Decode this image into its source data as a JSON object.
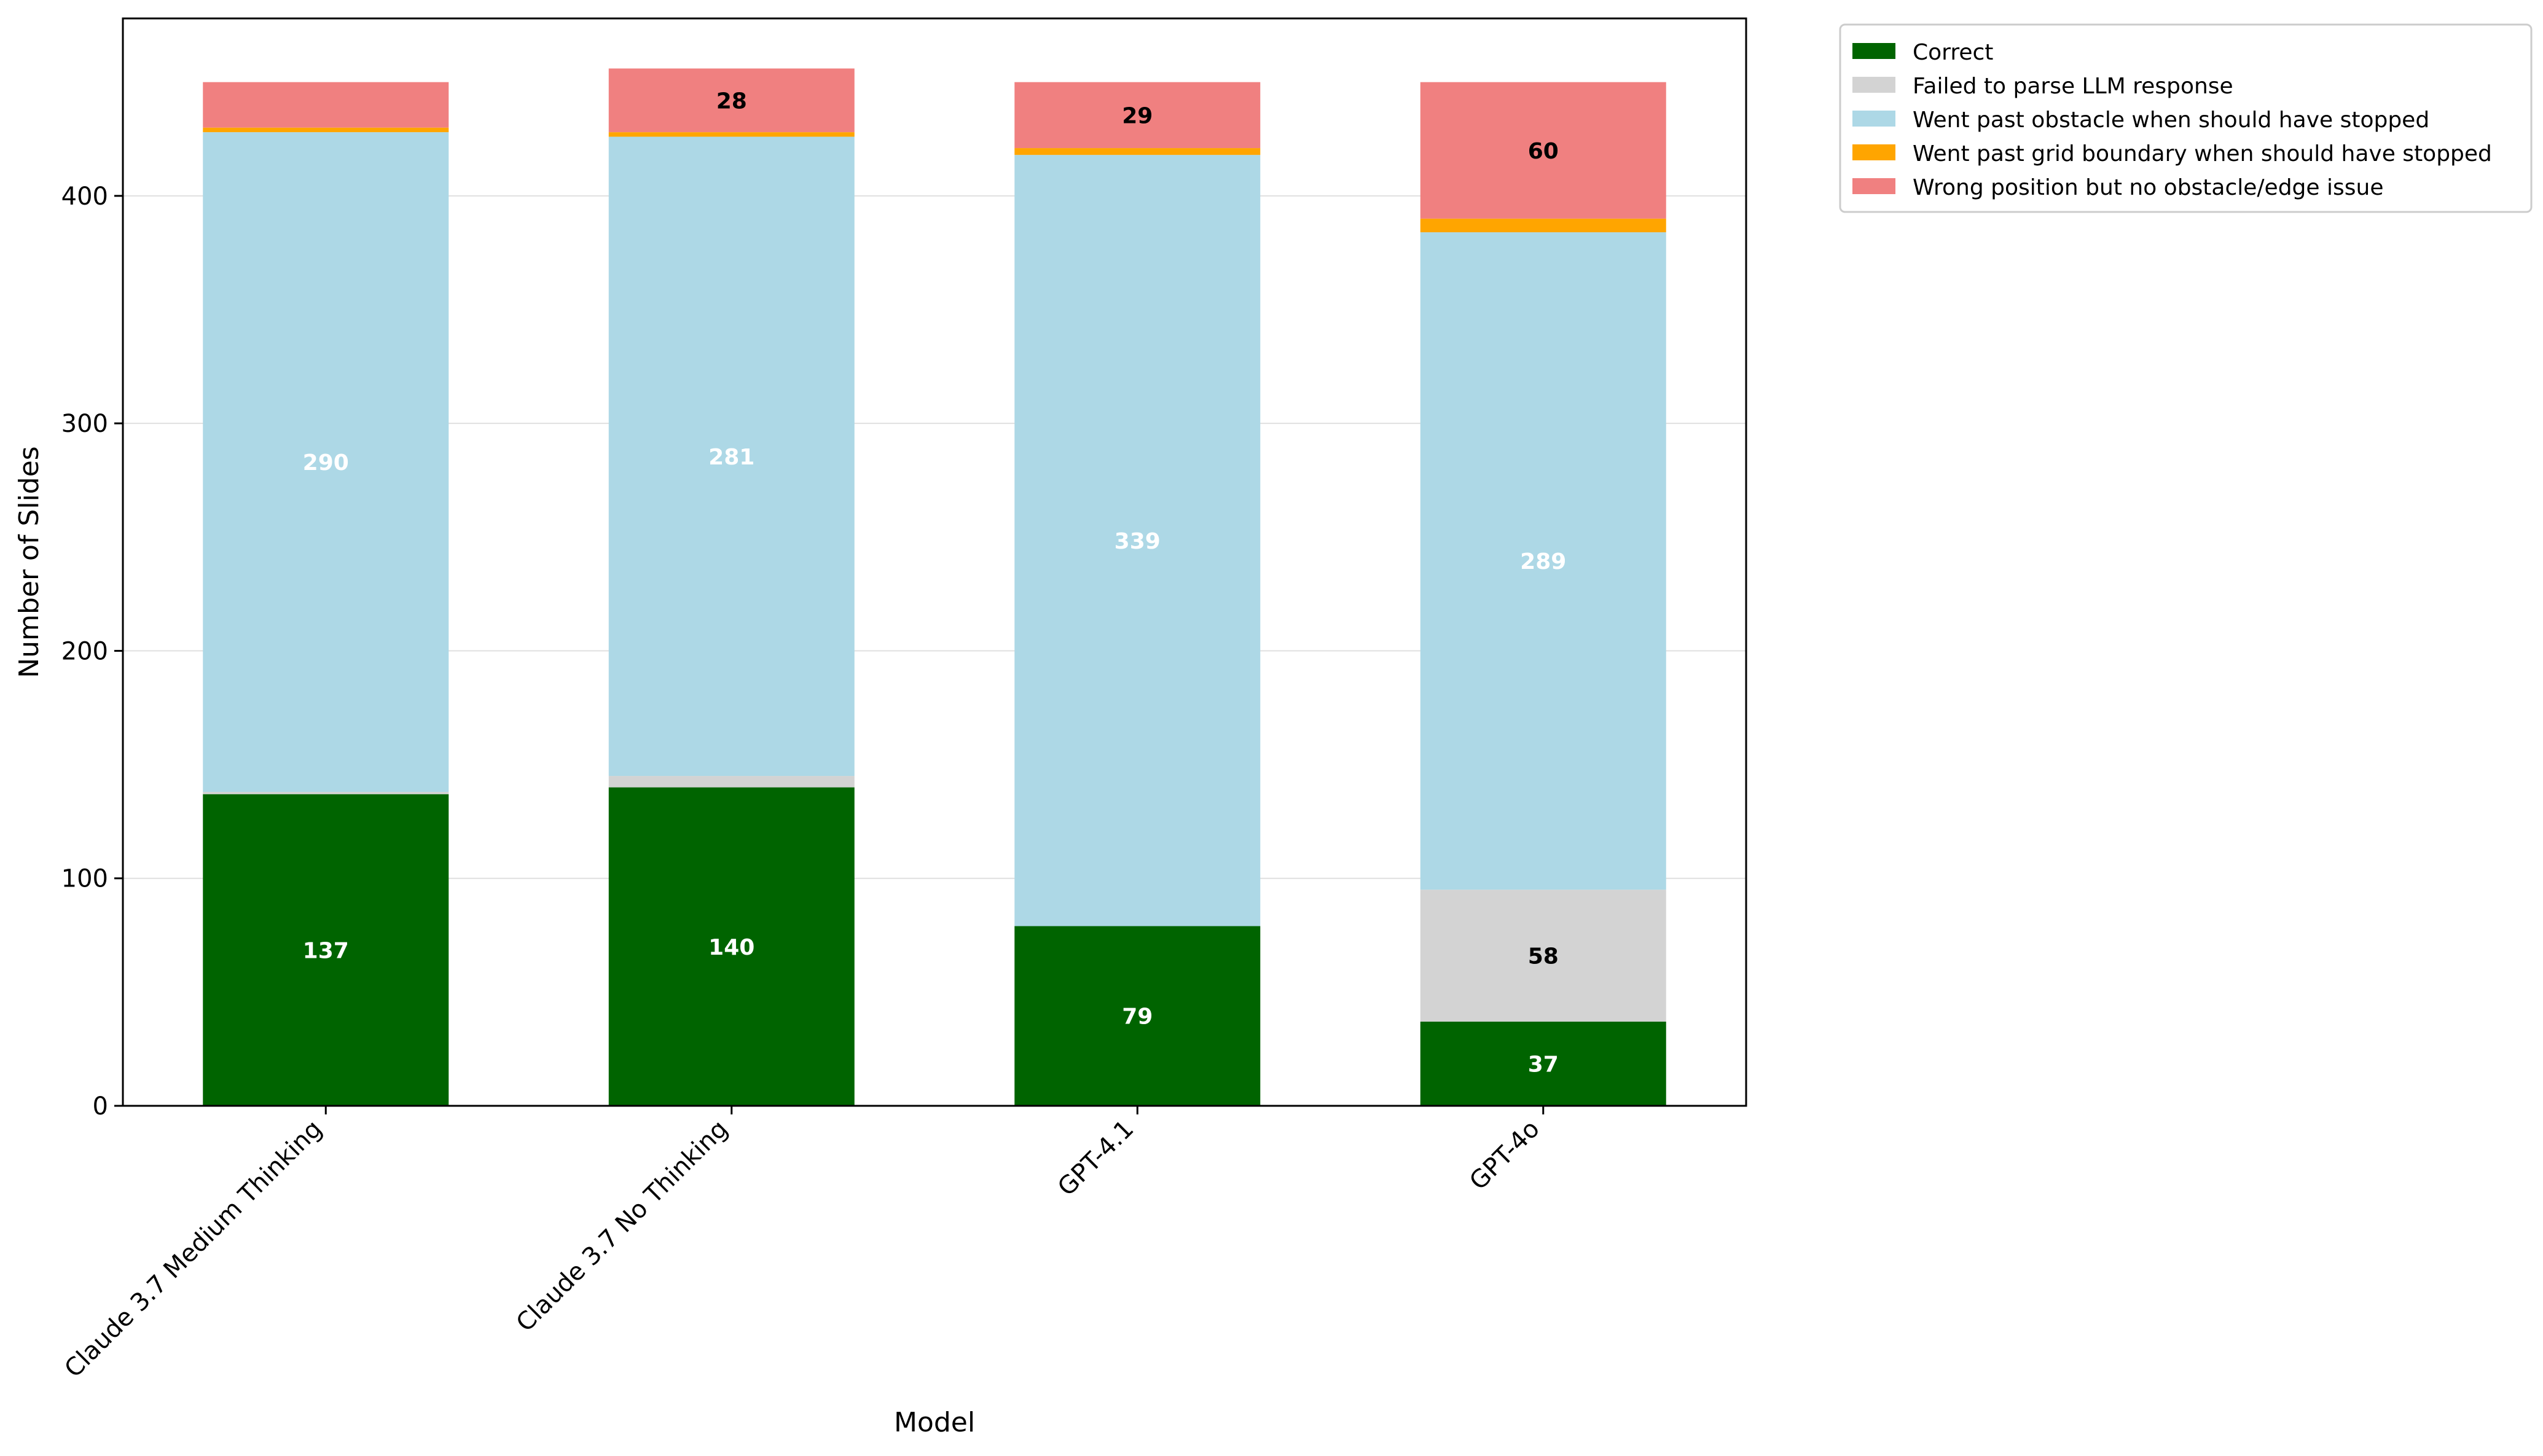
{
  "chart_data": {
    "type": "bar",
    "stacked": true,
    "title": "",
    "xlabel": "Model",
    "ylabel": "Number of Slides",
    "ylim": [
      0,
      478
    ],
    "yticks": [
      0,
      100,
      200,
      300,
      400
    ],
    "grid": "horizontal",
    "legend_position": "outside-top-right",
    "categories": [
      "Claude 3.7 Medium Thinking",
      "Claude 3.7 No Thinking",
      "GPT-4.1",
      "GPT-4o"
    ],
    "series": [
      {
        "name": "Correct",
        "color": "#006400",
        "label_color": "#ffffff",
        "values": [
          137,
          140,
          79,
          37
        ],
        "labels": [
          "137",
          "140",
          "79",
          "37"
        ]
      },
      {
        "name": "Failed to parse LLM response",
        "color": "#d3d3d3",
        "label_color": "#000000",
        "values": [
          1,
          5,
          0,
          58
        ],
        "labels": [
          "",
          "",
          "",
          "58"
        ]
      },
      {
        "name": "Went past obstacle when should have stopped",
        "color": "#add8e6",
        "label_color": "#ffffff",
        "values": [
          290,
          281,
          339,
          289
        ],
        "labels": [
          "290",
          "281",
          "339",
          "289"
        ]
      },
      {
        "name": "Went past grid boundary when should have stopped",
        "color": "#ffa500",
        "label_color": "#000000",
        "values": [
          2,
          2,
          3,
          6
        ],
        "labels": [
          "",
          "",
          "",
          ""
        ]
      },
      {
        "name": "Wrong position but no obstacle/edge issue",
        "color": "#f08080",
        "label_color": "#000000",
        "values": [
          20,
          28,
          29,
          60
        ],
        "labels": [
          "",
          "28",
          "29",
          "60"
        ]
      }
    ]
  }
}
